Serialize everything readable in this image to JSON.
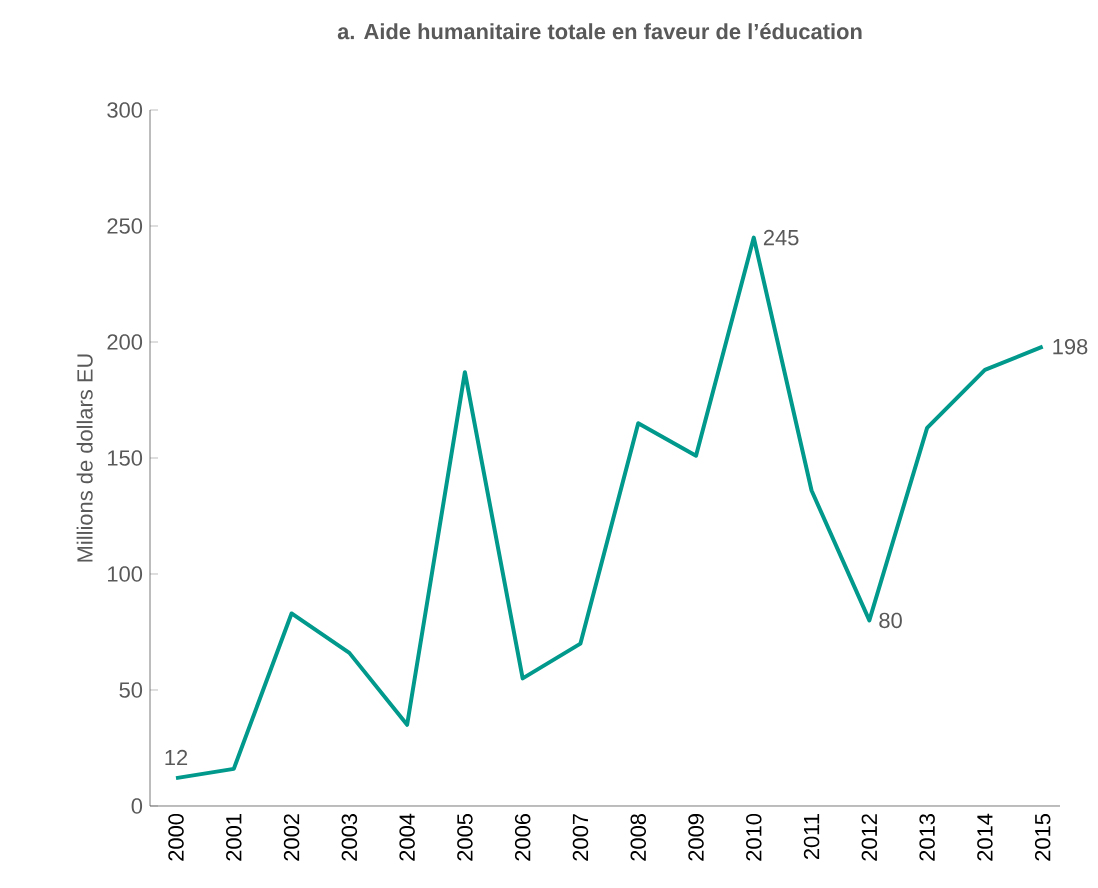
{
  "chart_data": {
    "type": "line",
    "title": "a. Aide humanitaire totale en faveur de l’éducation",
    "ylabel": "Millions de dollars EU",
    "categories": [
      "2000",
      "2001",
      "2002",
      "2003",
      "2004",
      "2005",
      "2006",
      "2007",
      "2008",
      "2009",
      "2010",
      "2011",
      "2012",
      "2013",
      "2014",
      "2015"
    ],
    "values": [
      12,
      16,
      83,
      66,
      35,
      187,
      55,
      70,
      165,
      151,
      245,
      136,
      80,
      163,
      188,
      198
    ],
    "value_labels": [
      "12",
      null,
      null,
      null,
      null,
      null,
      null,
      null,
      null,
      null,
      "245",
      null,
      "80",
      null,
      null,
      "198"
    ],
    "color": "#00998c",
    "ylim": [
      0,
      300
    ],
    "yticks": [
      0,
      50,
      100,
      150,
      200,
      250,
      300
    ],
    "grid": false,
    "marker": "none",
    "line_style": "solid"
  }
}
